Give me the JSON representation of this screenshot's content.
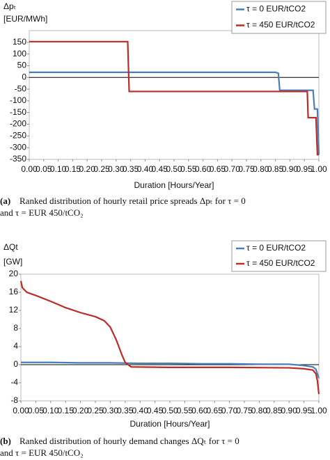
{
  "chart_data": [
    {
      "type": "line",
      "y_label": "Δpₜ",
      "y_unit": "[EUR/MWh]",
      "x_label": "Duration [Hours/Year]",
      "caption_label": "(a)",
      "caption": [
        "Ranked distribution of hourly retail price spreads Δpₜ for τ = 0",
        "and τ = EUR 450/tCO₂"
      ],
      "xlim": [
        0,
        1
      ],
      "ylim": [
        -350,
        200
      ],
      "xticks": [
        {
          "value": 0,
          "label": "0.00"
        },
        {
          "value": 0.05,
          "label": "0.05"
        },
        {
          "value": 0.1,
          "label": "0.10"
        },
        {
          "value": 0.15,
          "label": "0.15"
        },
        {
          "value": 0.2,
          "label": "0.20"
        },
        {
          "value": 0.25,
          "label": "0.25"
        },
        {
          "value": 0.3,
          "label": "0.30"
        },
        {
          "value": 0.35,
          "label": "0.35"
        },
        {
          "value": 0.4,
          "label": "0.40"
        },
        {
          "value": 0.45,
          "label": "0.45"
        },
        {
          "value": 0.5,
          "label": "0.50"
        },
        {
          "value": 0.55,
          "label": "0.55"
        },
        {
          "value": 0.6,
          "label": "0.60"
        },
        {
          "value": 0.65,
          "label": "0.65"
        },
        {
          "value": 0.7,
          "label": "0.70"
        },
        {
          "value": 0.75,
          "label": "0.75"
        },
        {
          "value": 0.8,
          "label": "0.80"
        },
        {
          "value": 0.85,
          "label": "0.85"
        },
        {
          "value": 0.9,
          "label": "0.90"
        },
        {
          "value": 0.95,
          "label": "0.95"
        },
        {
          "value": 1,
          "label": "1.00"
        }
      ],
      "yticks": [
        150,
        100,
        50,
        0,
        -50,
        -100,
        -150,
        -200,
        -250,
        -300,
        -350
      ],
      "series": [
        {
          "name": "τ = 0 EUR/tCO2",
          "color": "#4a7ebb",
          "x": [
            0,
            0.85,
            0.86,
            0.865,
            0.98,
            0.985,
            0.995,
            1.0
          ],
          "values": [
            22,
            22,
            18,
            -55,
            -55,
            -135,
            -135,
            -330
          ]
        },
        {
          "name": "τ = 450 EUR/tCO2",
          "color": "#be2a26",
          "x": [
            0,
            0.34,
            0.345,
            0.96,
            0.963,
            0.99,
            0.995,
            1.0
          ],
          "values": [
            153,
            153,
            -60,
            -60,
            -172,
            -172,
            -330,
            -330
          ]
        }
      ]
    },
    {
      "type": "line",
      "y_label": "ΔQt",
      "y_unit": "[GW]",
      "x_label": "Duration [Hours/Year]",
      "caption_label": "(b)",
      "caption": [
        "Ranked distribution of hourly demand changes ΔQₜ for τ = 0",
        "and τ = EUR 450/tCO₂"
      ],
      "xlim": [
        0,
        1
      ],
      "ylim": [
        -8,
        20
      ],
      "xticks": [
        {
          "value": 0,
          "label": "0.00"
        },
        {
          "value": 0.05,
          "label": "0.05"
        },
        {
          "value": 0.1,
          "label": "0.10"
        },
        {
          "value": 0.15,
          "label": "0.15"
        },
        {
          "value": 0.2,
          "label": "0.20"
        },
        {
          "value": 0.25,
          "label": "0.25"
        },
        {
          "value": 0.3,
          "label": "0.30"
        },
        {
          "value": 0.35,
          "label": "0.35"
        },
        {
          "value": 0.4,
          "label": "0.40"
        },
        {
          "value": 0.45,
          "label": "0.45"
        },
        {
          "value": 0.5,
          "label": "0.50"
        },
        {
          "value": 0.55,
          "label": "0.55"
        },
        {
          "value": 0.6,
          "label": "0.60"
        },
        {
          "value": 0.65,
          "label": "0.65"
        },
        {
          "value": 0.7,
          "label": "0.70"
        },
        {
          "value": 0.75,
          "label": "0.75"
        },
        {
          "value": 0.8,
          "label": "0.80"
        },
        {
          "value": 0.85,
          "label": "0.85"
        },
        {
          "value": 0.9,
          "label": "0.90"
        },
        {
          "value": 0.95,
          "label": "0.95"
        },
        {
          "value": 1,
          "label": "1.00"
        }
      ],
      "yticks": [
        20,
        16,
        12,
        8,
        4,
        0,
        -4,
        -8
      ],
      "series": [
        {
          "name": "τ = 0 EUR/tCO2",
          "color": "#4a7ebb",
          "x": [
            0,
            0.1,
            0.2,
            0.3,
            0.4,
            0.5,
            0.6,
            0.7,
            0.8,
            0.9,
            0.95,
            0.98,
            0.99,
            1.0
          ],
          "values": [
            0.5,
            0.5,
            0.4,
            0.4,
            0.3,
            0.3,
            0.2,
            0.2,
            0.1,
            0.1,
            -0.2,
            -0.5,
            -1,
            -3
          ]
        },
        {
          "name": "τ = 450 EUR/tCO2",
          "color": "#be2a26",
          "x": [
            0,
            0.005,
            0.02,
            0.05,
            0.1,
            0.15,
            0.2,
            0.25,
            0.28,
            0.3,
            0.32,
            0.34,
            0.35,
            0.37,
            0.5,
            0.7,
            0.9,
            0.95,
            0.98,
            0.99,
            0.995,
            1.0
          ],
          "values": [
            18.5,
            17,
            16,
            15.3,
            14,
            12.6,
            11.5,
            10.6,
            9.7,
            8.3,
            5.5,
            2,
            0.5,
            -0.5,
            -0.6,
            -0.6,
            -0.7,
            -0.9,
            -1.2,
            -2,
            -3.5,
            -6.5
          ]
        }
      ]
    }
  ]
}
